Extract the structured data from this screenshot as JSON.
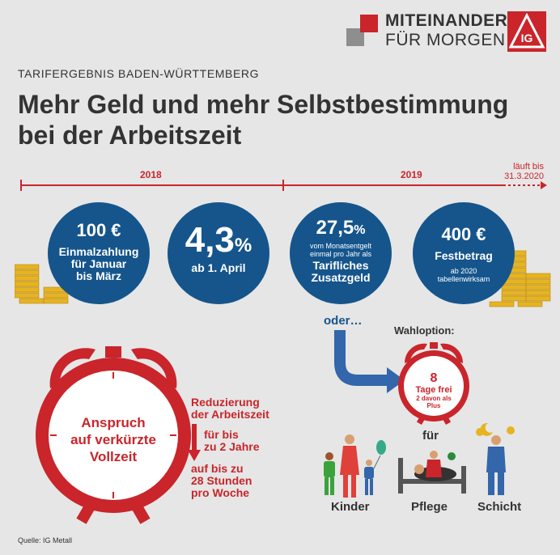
{
  "logo": {
    "line1": "MITEINANDER",
    "line2": "FÜR MORGEN",
    "emblem": "IG-metall-logo"
  },
  "kicker": "TARIFERGEBNIS BADEN-WÜRTTEMBERG",
  "headline": {
    "line1": "Mehr Geld und mehr Selbstbestimmung",
    "line2": "bei der Arbeitszeit"
  },
  "timeline": {
    "year1": "2018",
    "year2": "2019",
    "end_line1": "läuft bis",
    "end_line2": "31.3.2020"
  },
  "circles": [
    {
      "value": "100 €",
      "lines": [
        "Einmalzahlung",
        "für Januar",
        "bis März"
      ]
    },
    {
      "value": "4,3",
      "unit": "%",
      "sub": "ab 1. April"
    },
    {
      "value": "27,5",
      "unit": "%",
      "small": [
        "vom Monatsentgelt",
        "einmal pro Jahr als"
      ],
      "lines": [
        "Tarifliches",
        "Zusatzgeld"
      ]
    },
    {
      "value": "400 €",
      "lines": [
        "Festbetrag"
      ],
      "small": [
        "ab 2020",
        "tabellenwirksam"
      ]
    }
  ],
  "clock_big": {
    "lines": [
      "Anspruch",
      "auf verkürzte",
      "Vollzeit"
    ]
  },
  "reduction": {
    "title": [
      "Reduzierung",
      "der Arbeitszeit"
    ],
    "duration": [
      "für bis",
      "zu 2 Jahre"
    ],
    "amount": [
      "auf bis zu",
      "28 Stunden",
      "pro Woche"
    ]
  },
  "oder": "oder…",
  "wahloption": "Wahloption:",
  "clock_small": {
    "value": "8",
    "lines": [
      "Tage frei"
    ],
    "small": [
      "2 davon als",
      "Plus"
    ]
  },
  "fuer": "für",
  "categories": [
    "Kinder",
    "Pflege",
    "Schicht"
  ],
  "source": "Quelle: IG Metall",
  "colors": {
    "red": "#c9252b",
    "blue": "#15558c",
    "gold": "#e6b422",
    "background": "#e6e6e6",
    "text": "#333333"
  }
}
